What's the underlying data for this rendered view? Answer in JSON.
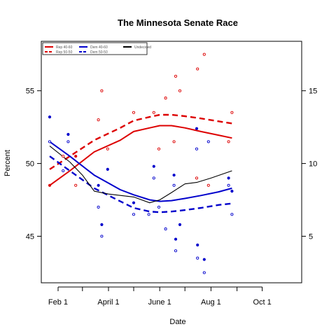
{
  "chart_data": {
    "type": "scatter",
    "title": "The Minnesota Senate Race",
    "xlabel": "Date",
    "ylabel": "Percent",
    "x_ticks": [
      {
        "date": "2008-02-01",
        "label": "Feb 1"
      },
      {
        "date": "2008-04-01",
        "label": "April 1"
      },
      {
        "date": "2008-06-01",
        "label": "June 1"
      },
      {
        "date": "2008-08-01",
        "label": "Aug 1"
      },
      {
        "date": "2008-10-01",
        "label": "Oct 1"
      }
    ],
    "x_minor_ticks": [
      "2008-03-01",
      "2008-05-01",
      "2008-07-01",
      "2008-09-01"
    ],
    "xlim": [
      "2008-01-12",
      "2008-11-17"
    ],
    "ylim": [
      41.8,
      58.4
    ],
    "y_ticks": [
      45,
      50,
      55
    ],
    "y2_ticks": [
      5,
      10,
      15
    ],
    "y2_map": {
      "left": [
        45,
        50,
        55
      ],
      "right": [
        5,
        10,
        15
      ]
    },
    "legend": {
      "placement": "top-left",
      "entries": [
        {
          "label": "Rep 40-60",
          "color": "#dd0000",
          "dash": "solid"
        },
        {
          "label": "Rep 50-50",
          "color": "#dd0000",
          "dash": "dashed"
        },
        {
          "label": "Dem 40-60",
          "color": "#0000cc",
          "dash": "solid"
        },
        {
          "label": "Dem 50-50",
          "color": "#0000cc",
          "dash": "dashed"
        },
        {
          "label": "Undecided",
          "color": "#000000",
          "dash": "solid"
        }
      ]
    },
    "series": [
      {
        "id": "rep-4060",
        "kind": "line",
        "color": "#dd0000",
        "dash": "solid",
        "width": 2,
        "points": [
          [
            "2008-01-22",
            48.5
          ],
          [
            "2008-02-15",
            49.5
          ],
          [
            "2008-03-15",
            50.8
          ],
          [
            "2008-04-15",
            51.6
          ],
          [
            "2008-05-01",
            52.2
          ],
          [
            "2008-05-20",
            52.45
          ],
          [
            "2008-06-01",
            52.6
          ],
          [
            "2008-06-15",
            52.6
          ],
          [
            "2008-07-01",
            52.45
          ],
          [
            "2008-07-20",
            52.2
          ],
          [
            "2008-08-10",
            51.95
          ],
          [
            "2008-08-26",
            51.75
          ]
        ]
      },
      {
        "id": "rep-5050",
        "kind": "line",
        "color": "#dd0000",
        "dash": "dashed",
        "width": 2.4,
        "points": [
          [
            "2008-01-22",
            49.6
          ],
          [
            "2008-02-15",
            50.5
          ],
          [
            "2008-03-15",
            51.6
          ],
          [
            "2008-04-15",
            52.45
          ],
          [
            "2008-05-01",
            52.95
          ],
          [
            "2008-05-20",
            53.2
          ],
          [
            "2008-06-01",
            53.35
          ],
          [
            "2008-06-15",
            53.35
          ],
          [
            "2008-07-01",
            53.25
          ],
          [
            "2008-07-20",
            53.1
          ],
          [
            "2008-08-10",
            52.9
          ],
          [
            "2008-08-26",
            52.75
          ]
        ]
      },
      {
        "id": "dem-4060",
        "kind": "line",
        "color": "#0000cc",
        "dash": "solid",
        "width": 2,
        "points": [
          [
            "2008-01-22",
            51.5
          ],
          [
            "2008-02-15",
            50.5
          ],
          [
            "2008-03-15",
            49.2
          ],
          [
            "2008-04-15",
            48.2
          ],
          [
            "2008-05-01",
            47.85
          ],
          [
            "2008-05-20",
            47.5
          ],
          [
            "2008-06-01",
            47.4
          ],
          [
            "2008-06-15",
            47.45
          ],
          [
            "2008-07-01",
            47.6
          ],
          [
            "2008-07-20",
            47.8
          ],
          [
            "2008-08-10",
            48.05
          ],
          [
            "2008-08-26",
            48.3
          ]
        ]
      },
      {
        "id": "dem-5050",
        "kind": "line",
        "color": "#0000cc",
        "dash": "dashed",
        "width": 2.4,
        "points": [
          [
            "2008-01-22",
            50.5
          ],
          [
            "2008-02-15",
            49.5
          ],
          [
            "2008-03-15",
            48.3
          ],
          [
            "2008-04-15",
            47.4
          ],
          [
            "2008-05-01",
            46.95
          ],
          [
            "2008-05-20",
            46.7
          ],
          [
            "2008-06-01",
            46.65
          ],
          [
            "2008-06-15",
            46.7
          ],
          [
            "2008-07-01",
            46.8
          ],
          [
            "2008-07-20",
            46.95
          ],
          [
            "2008-08-10",
            47.15
          ],
          [
            "2008-08-26",
            47.25
          ]
        ]
      },
      {
        "id": "undecided",
        "kind": "line",
        "color": "#000000",
        "dash": "solid",
        "width": 1.1,
        "axis": "right",
        "points": [
          [
            "2008-01-22",
            11.2
          ],
          [
            "2008-02-15",
            10.1
          ],
          [
            "2008-03-01",
            9.2
          ],
          [
            "2008-03-15",
            8.1
          ],
          [
            "2008-04-01",
            7.9
          ],
          [
            "2008-05-01",
            7.7
          ],
          [
            "2008-05-20",
            7.3
          ],
          [
            "2008-06-01",
            7.5
          ],
          [
            "2008-06-15",
            8
          ],
          [
            "2008-07-01",
            8.6
          ],
          [
            "2008-07-15",
            8.7
          ],
          [
            "2008-08-01",
            9
          ],
          [
            "2008-08-26",
            9.5
          ]
        ]
      },
      {
        "id": "rep-4060-pts",
        "kind": "points",
        "color": "#dd0000",
        "filled": true,
        "points": [
          [
            "2008-01-22",
            48.5
          ],
          [
            "2008-02-22",
            50.5
          ]
        ]
      },
      {
        "id": "rep-5050-pts",
        "kind": "points",
        "color": "#dd0000",
        "filled": false,
        "points": [
          [
            "2008-02-07",
            50.5
          ],
          [
            "2008-02-22",
            48.5
          ],
          [
            "2008-03-20",
            53
          ],
          [
            "2008-03-24",
            55
          ],
          [
            "2008-03-31",
            51
          ],
          [
            "2008-05-01",
            53.5
          ],
          [
            "2008-05-25",
            53.5
          ],
          [
            "2008-05-31",
            51
          ],
          [
            "2008-06-08",
            54.5
          ],
          [
            "2008-06-18",
            51.5
          ],
          [
            "2008-06-20",
            56
          ],
          [
            "2008-06-25",
            55
          ],
          [
            "2008-07-15",
            49
          ],
          [
            "2008-07-16",
            56.5
          ],
          [
            "2008-07-24",
            57.5
          ],
          [
            "2008-07-29",
            48.5
          ],
          [
            "2008-08-22",
            51.5
          ],
          [
            "2008-08-26",
            53.5
          ]
        ]
      },
      {
        "id": "dem-4060-pts",
        "kind": "points",
        "color": "#0000cc",
        "filled": true,
        "points": [
          [
            "2008-01-22",
            53.2
          ],
          [
            "2008-02-13",
            52
          ],
          [
            "2008-03-20",
            48.5
          ],
          [
            "2008-03-24",
            45.8
          ],
          [
            "2008-03-31",
            49.6
          ],
          [
            "2008-05-01",
            47.3
          ],
          [
            "2008-05-25",
            49.8
          ],
          [
            "2008-06-18",
            49.2
          ],
          [
            "2008-06-20",
            44.8
          ],
          [
            "2008-06-25",
            45.8
          ],
          [
            "2008-07-15",
            52.4
          ],
          [
            "2008-07-16",
            44.4
          ],
          [
            "2008-07-24",
            43.4
          ],
          [
            "2008-08-22",
            49
          ],
          [
            "2008-08-26",
            48.1
          ]
        ]
      },
      {
        "id": "dem-5050-pts",
        "kind": "points",
        "color": "#0000cc",
        "filled": false,
        "points": [
          [
            "2008-01-22",
            51.5
          ],
          [
            "2008-02-07",
            49.5
          ],
          [
            "2008-02-13",
            51.5
          ],
          [
            "2008-03-20",
            47
          ],
          [
            "2008-03-24",
            45
          ],
          [
            "2008-05-01",
            46.5
          ],
          [
            "2008-05-19",
            46.5
          ],
          [
            "2008-05-25",
            49
          ],
          [
            "2008-05-31",
            47
          ],
          [
            "2008-06-08",
            45.5
          ],
          [
            "2008-06-18",
            48.5
          ],
          [
            "2008-06-20",
            44
          ],
          [
            "2008-07-15",
            51
          ],
          [
            "2008-07-16",
            43.5
          ],
          [
            "2008-07-24",
            42.5
          ],
          [
            "2008-07-29",
            51.5
          ],
          [
            "2008-08-22",
            48.5
          ],
          [
            "2008-08-26",
            46.5
          ]
        ]
      }
    ]
  }
}
